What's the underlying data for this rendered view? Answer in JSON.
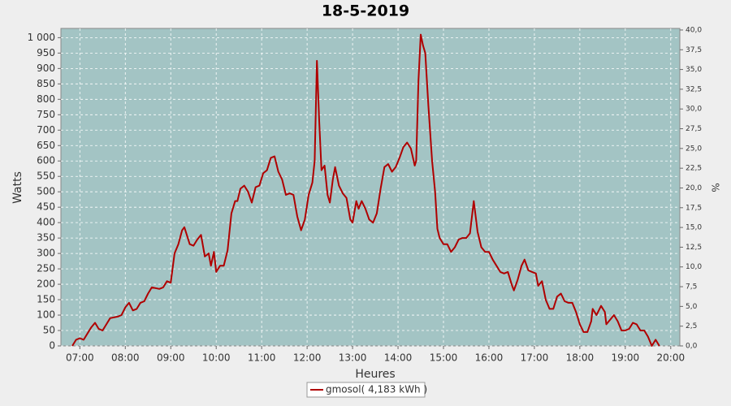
{
  "chart_data": {
    "type": "line",
    "title": "18-5-2019",
    "x_label": "Heures",
    "y_label": "Watts",
    "y2_label": "%",
    "x": [
      "06:50",
      "06:55",
      "07:00",
      "07:05",
      "07:15",
      "07:20",
      "07:25",
      "07:30",
      "07:40",
      "07:50",
      "07:55",
      "08:00",
      "08:05",
      "08:10",
      "08:15",
      "08:20",
      "08:25",
      "08:30",
      "08:35",
      "08:45",
      "08:50",
      "08:55",
      "09:00",
      "09:05",
      "09:10",
      "09:15",
      "09:18",
      "09:25",
      "09:30",
      "09:35",
      "09:40",
      "09:45",
      "09:50",
      "09:53",
      "09:57",
      "10:00",
      "10:05",
      "10:10",
      "10:15",
      "10:20",
      "10:25",
      "10:28",
      "10:32",
      "10:37",
      "10:42",
      "10:47",
      "10:52",
      "10:57",
      "11:02",
      "11:07",
      "11:12",
      "11:17",
      "11:22",
      "11:27",
      "11:32",
      "11:37",
      "11:42",
      "11:47",
      "11:52",
      "11:57",
      "12:02",
      "12:07",
      "12:10",
      "12:13",
      "12:16",
      "12:19",
      "12:23",
      "12:27",
      "12:30",
      "12:34",
      "12:37",
      "12:42",
      "12:47",
      "12:52",
      "12:57",
      "13:00",
      "13:05",
      "13:08",
      "13:12",
      "13:17",
      "13:22",
      "13:27",
      "13:32",
      "13:37",
      "13:42",
      "13:47",
      "13:52",
      "13:57",
      "14:02",
      "14:07",
      "14:12",
      "14:17",
      "14:22",
      "14:24",
      "14:27",
      "14:30",
      "14:33",
      "14:36",
      "14:40",
      "14:45",
      "14:49",
      "14:52",
      "14:55",
      "15:00",
      "15:05",
      "15:10",
      "15:15",
      "15:20",
      "15:25",
      "15:30",
      "15:35",
      "15:40",
      "15:45",
      "15:50",
      "15:55",
      "16:00",
      "16:05",
      "16:10",
      "16:15",
      "16:20",
      "16:25",
      "16:30",
      "16:33",
      "16:38",
      "16:43",
      "16:47",
      "16:52",
      "16:57",
      "17:02",
      "17:05",
      "17:10",
      "17:15",
      "17:20",
      "17:25",
      "17:30",
      "17:35",
      "17:40",
      "17:45",
      "17:50",
      "17:55",
      "18:00",
      "18:05",
      "18:10",
      "18:15",
      "18:17",
      "18:22",
      "18:28",
      "18:33",
      "18:35",
      "18:40",
      "18:45",
      "18:50",
      "18:55",
      "19:00",
      "19:05",
      "19:10",
      "19:15",
      "19:20",
      "19:25",
      "19:30",
      "19:35",
      "19:40",
      "19:45"
    ],
    "series": [
      {
        "name": "gmosol( 4,183 kWh )",
        "color": "#b00000",
        "values": [
          0,
          20,
          25,
          20,
          60,
          75,
          55,
          50,
          90,
          95,
          100,
          125,
          140,
          115,
          120,
          140,
          145,
          170,
          190,
          185,
          190,
          210,
          205,
          300,
          330,
          375,
          385,
          330,
          325,
          345,
          360,
          290,
          300,
          260,
          305,
          240,
          260,
          260,
          310,
          430,
          470,
          470,
          510,
          520,
          500,
          465,
          515,
          520,
          560,
          570,
          610,
          615,
          565,
          540,
          490,
          495,
          490,
          420,
          375,
          410,
          490,
          530,
          600,
          925,
          730,
          570,
          585,
          490,
          465,
          540,
          580,
          520,
          495,
          480,
          410,
          400,
          470,
          445,
          470,
          445,
          410,
          400,
          430,
          510,
          580,
          590,
          565,
          580,
          610,
          645,
          660,
          640,
          585,
          600,
          860,
          1010,
          975,
          950,
          780,
          600,
          500,
          380,
          350,
          330,
          330,
          305,
          320,
          345,
          350,
          350,
          365,
          470,
          370,
          320,
          305,
          305,
          280,
          260,
          240,
          235,
          240,
          200,
          180,
          215,
          260,
          280,
          245,
          240,
          235,
          195,
          210,
          150,
          120,
          120,
          160,
          170,
          145,
          140,
          140,
          110,
          70,
          45,
          45,
          80,
          120,
          100,
          130,
          110,
          70,
          85,
          100,
          80,
          50,
          50,
          55,
          75,
          70,
          50,
          50,
          30,
          0,
          20,
          0
        ]
      }
    ],
    "xlim": [
      "06:35",
      "20:12"
    ],
    "xticks": [
      "07:00",
      "08:00",
      "09:00",
      "10:00",
      "11:00",
      "12:00",
      "13:00",
      "14:00",
      "15:00",
      "16:00",
      "17:00",
      "18:00",
      "19:00",
      "20:00"
    ],
    "ylim": [
      0,
      1030
    ],
    "yticks": [
      0,
      50,
      100,
      150,
      200,
      250,
      300,
      350,
      400,
      450,
      500,
      550,
      600,
      650,
      700,
      750,
      800,
      850,
      900,
      950,
      {
        "value": 1000,
        "label": "1 000"
      }
    ],
    "y2lim": [
      0,
      40.2
    ],
    "y2ticks": [
      {
        "value": 0,
        "label": "0,0"
      },
      {
        "value": 2.5,
        "label": "2,5"
      },
      {
        "value": 5,
        "label": "5,0"
      },
      {
        "value": 7.5,
        "label": "7,5"
      },
      {
        "value": 10,
        "label": "10,0"
      },
      {
        "value": 12.5,
        "label": "12,5"
      },
      {
        "value": 15,
        "label": "15,0"
      },
      {
        "value": 17.5,
        "label": "17,5"
      },
      {
        "value": 20,
        "label": "20,0"
      },
      {
        "value": 22.5,
        "label": "22,5"
      },
      {
        "value": 25,
        "label": "25,0"
      },
      {
        "value": 27.5,
        "label": "27,5"
      },
      {
        "value": 30,
        "label": "30,0"
      },
      {
        "value": 32.5,
        "label": "32,5"
      },
      {
        "value": 35,
        "label": "35,0"
      },
      {
        "value": 37.5,
        "label": "37,5"
      },
      {
        "value": 40,
        "label": "40,0"
      }
    ],
    "grid": true,
    "legend": "bottom",
    "background": "#a3c4c4"
  }
}
